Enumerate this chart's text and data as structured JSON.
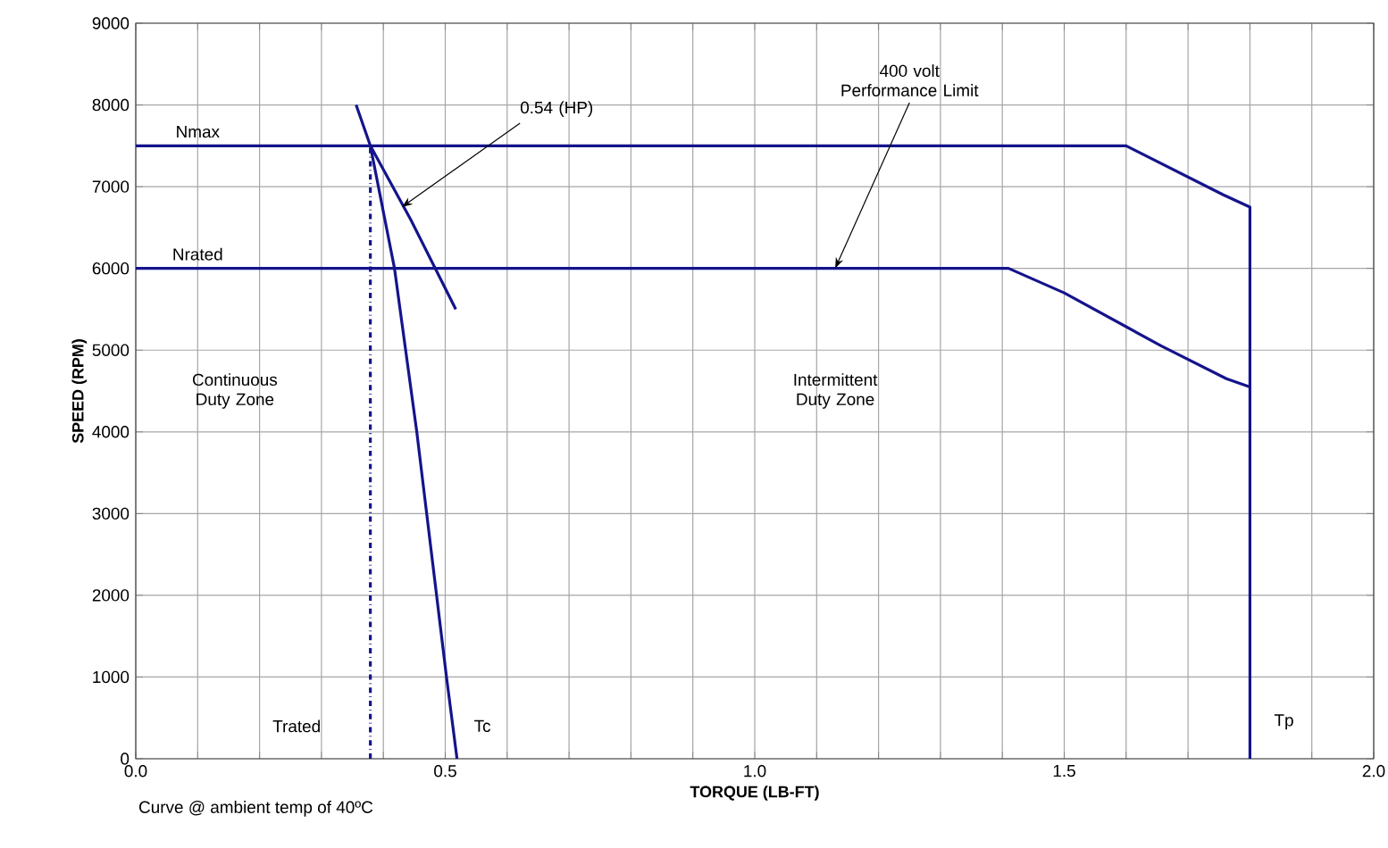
{
  "chart_data": {
    "type": "line",
    "xlabel": "TORQUE (LB-FT)",
    "ylabel": "SPEED (RPM)",
    "xlim": [
      0,
      2
    ],
    "ylim": [
      0,
      9000
    ],
    "xticks": [
      {
        "value": 0,
        "label": "0.0"
      },
      {
        "value": 0.1,
        "label": null
      },
      {
        "value": 0.2,
        "label": null
      },
      {
        "value": 0.3,
        "label": null
      },
      {
        "value": 0.4,
        "label": null
      },
      {
        "value": 0.5,
        "label": "0.5"
      },
      {
        "value": 0.6,
        "label": null
      },
      {
        "value": 0.7,
        "label": null
      },
      {
        "value": 0.8,
        "label": null
      },
      {
        "value": 0.9,
        "label": null
      },
      {
        "value": 1.0,
        "label": "1.0"
      },
      {
        "value": 1.1,
        "label": null
      },
      {
        "value": 1.2,
        "label": null
      },
      {
        "value": 1.3,
        "label": null
      },
      {
        "value": 1.4,
        "label": null
      },
      {
        "value": 1.5,
        "label": "1.5"
      },
      {
        "value": 1.6,
        "label": null
      },
      {
        "value": 1.7,
        "label": null
      },
      {
        "value": 1.8,
        "label": null
      },
      {
        "value": 1.9,
        "label": null
      },
      {
        "value": 2.0,
        "label": "2.0"
      }
    ],
    "yticks": [
      0,
      1000,
      2000,
      3000,
      4000,
      5000,
      6000,
      7000,
      8000,
      9000
    ],
    "grid": true,
    "marker": "none",
    "series": [
      {
        "color": "#14148c",
        "line_style": "solid",
        "x": [
          0,
          1.6,
          1.757,
          1.8,
          1.8
        ],
        "values": [
          7500,
          7500,
          6900,
          6750,
          0
        ]
      },
      {
        "color": "#14148c",
        "line_style": "solid",
        "x": [
          0,
          1.41,
          1.5,
          1.657,
          1.762,
          1.8
        ],
        "values": [
          6000,
          6000,
          5700,
          5050,
          4650,
          4550
        ]
      },
      {
        "color": "#14148c",
        "line_style": "solid",
        "x": [
          0.356,
          0.379,
          0.418,
          0.454,
          0.502,
          0.519
        ],
        "values": [
          8000,
          7500,
          6000,
          4000,
          1000,
          0
        ]
      },
      {
        "color": "#14148c",
        "line_style": "solid",
        "x": [
          0.379,
          0.444,
          0.517
        ],
        "values": [
          7500,
          6600,
          5500
        ]
      },
      {
        "color": "#14148c",
        "line_style": "dashdot",
        "x": [
          0.379,
          0.379
        ],
        "values": [
          0,
          7500
        ]
      }
    ],
    "annotations": [
      "Nmax",
      "Nrated",
      "Continuous Duty Zone",
      "Intermittent Duty Zone",
      "Trated",
      "Tc",
      "Tp",
      "Curve @ ambient temp of 40ºC",
      {
        "text": "0.54 (HP)",
        "x": 0.43,
        "y": 6750
      },
      {
        "text": "400 volt Performance Limit",
        "x": 1.13,
        "y": 6000
      }
    ]
  }
}
